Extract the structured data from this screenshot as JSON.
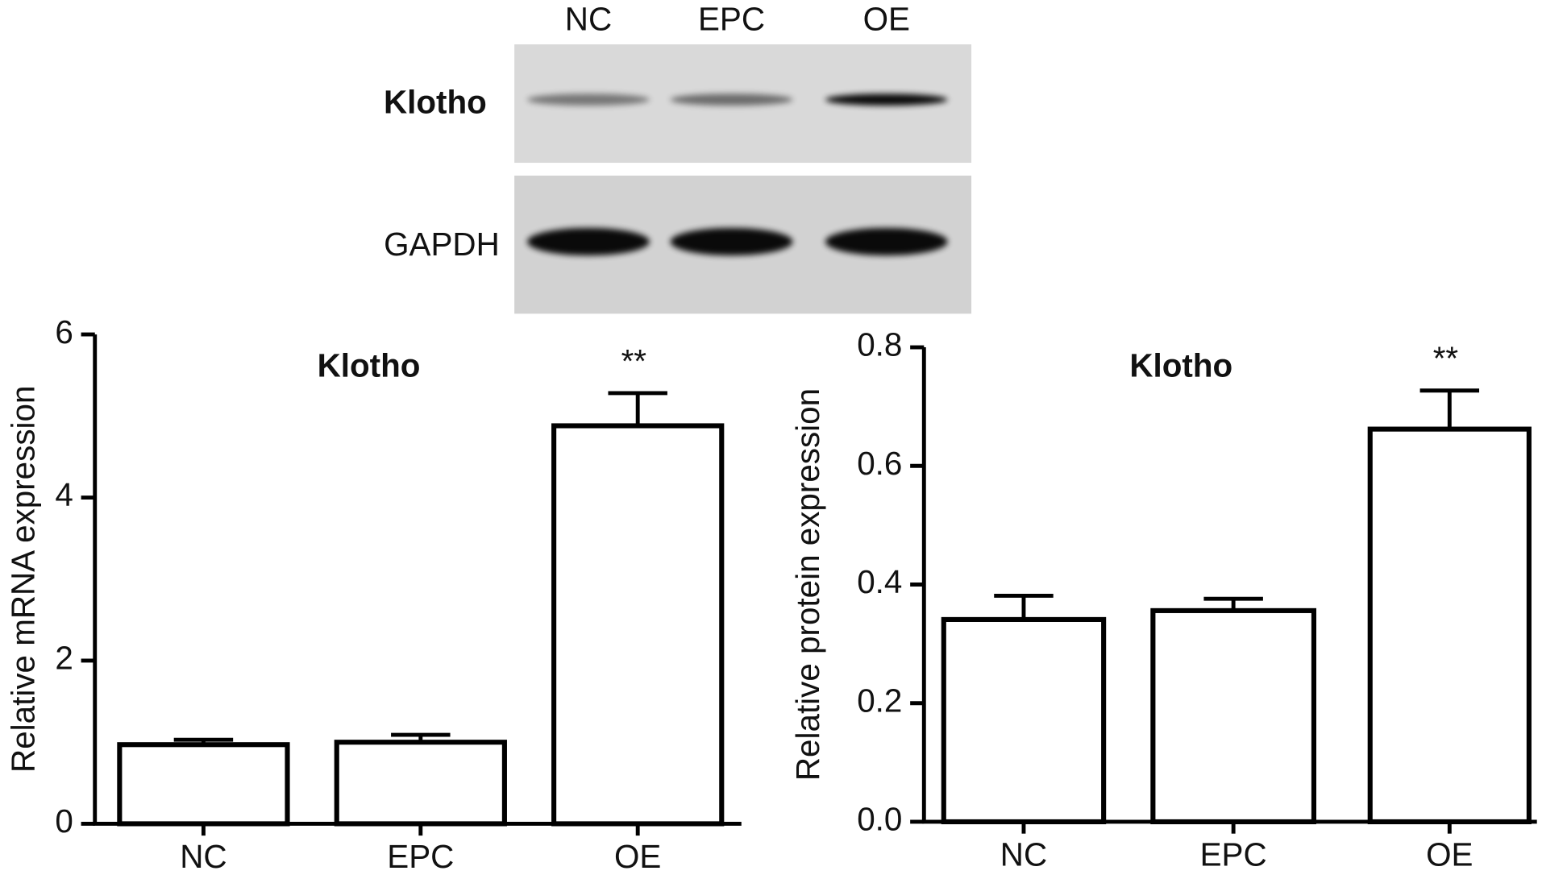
{
  "blot": {
    "lanes": [
      "NC",
      "EPC",
      "OE"
    ],
    "rows": [
      "Klotho",
      "GAPDH"
    ]
  },
  "chart_data": [
    {
      "type": "bar",
      "title": "Klotho",
      "ylabel": "Relative mRNA expression",
      "categories": [
        "NC",
        "EPC",
        "OE"
      ],
      "values": [
        0.97,
        1.0,
        4.88
      ],
      "errors": [
        0.06,
        0.09,
        0.4
      ],
      "color": "#ffffff",
      "ylim": [
        0,
        6
      ],
      "yticks": [
        0,
        2,
        4,
        6
      ],
      "annotations": [
        {
          "text": "**",
          "x": "OE"
        }
      ]
    },
    {
      "type": "bar",
      "title": "Klotho",
      "ylabel": "Relative protein expression",
      "categories": [
        "NC",
        "EPC",
        "OE"
      ],
      "values": [
        0.341,
        0.356,
        0.662
      ],
      "errors": [
        0.04,
        0.02,
        0.065
      ],
      "color": "#ffffff",
      "ylim": [
        0,
        0.8
      ],
      "yticks": [
        {
          "value": 0,
          "label": "0.0"
        },
        0.2,
        0.4,
        0.6,
        0.8
      ],
      "annotations": [
        {
          "text": "**",
          "x": "OE"
        }
      ]
    }
  ]
}
